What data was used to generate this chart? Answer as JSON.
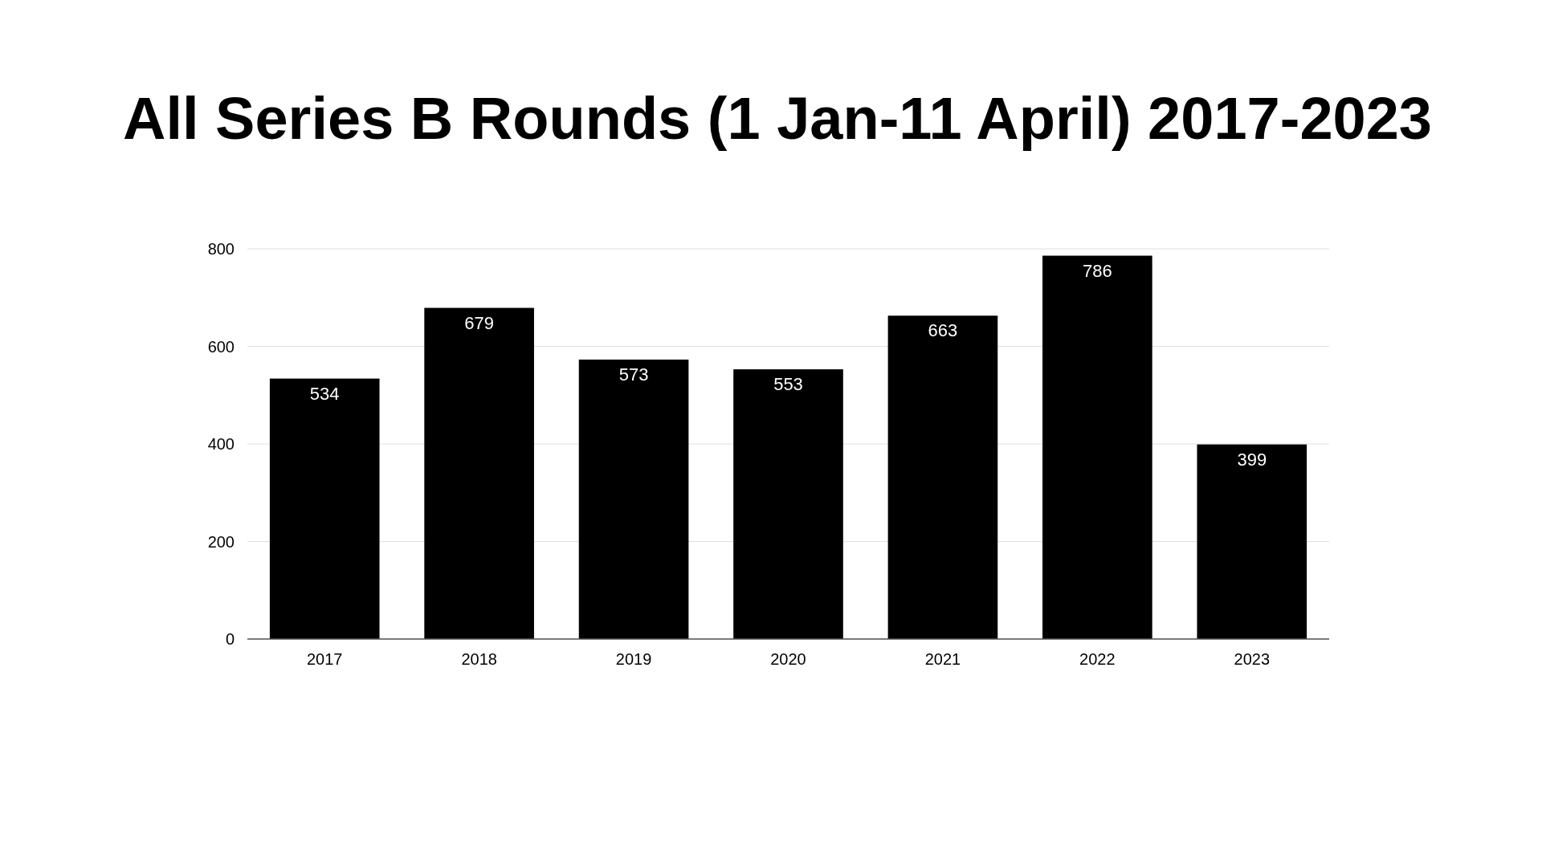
{
  "chart_data": {
    "type": "bar",
    "title": "All Series B Rounds (1 Jan-11 April) 2017-2023",
    "categories": [
      "2017",
      "2018",
      "2019",
      "2020",
      "2021",
      "2022",
      "2023"
    ],
    "values": [
      534,
      679,
      573,
      553,
      663,
      786,
      399
    ],
    "color": "#000000",
    "ylim": [
      0,
      800
    ],
    "yticks": [
      0,
      200,
      400,
      600,
      800
    ],
    "grid": "y",
    "data_labels": true
  }
}
